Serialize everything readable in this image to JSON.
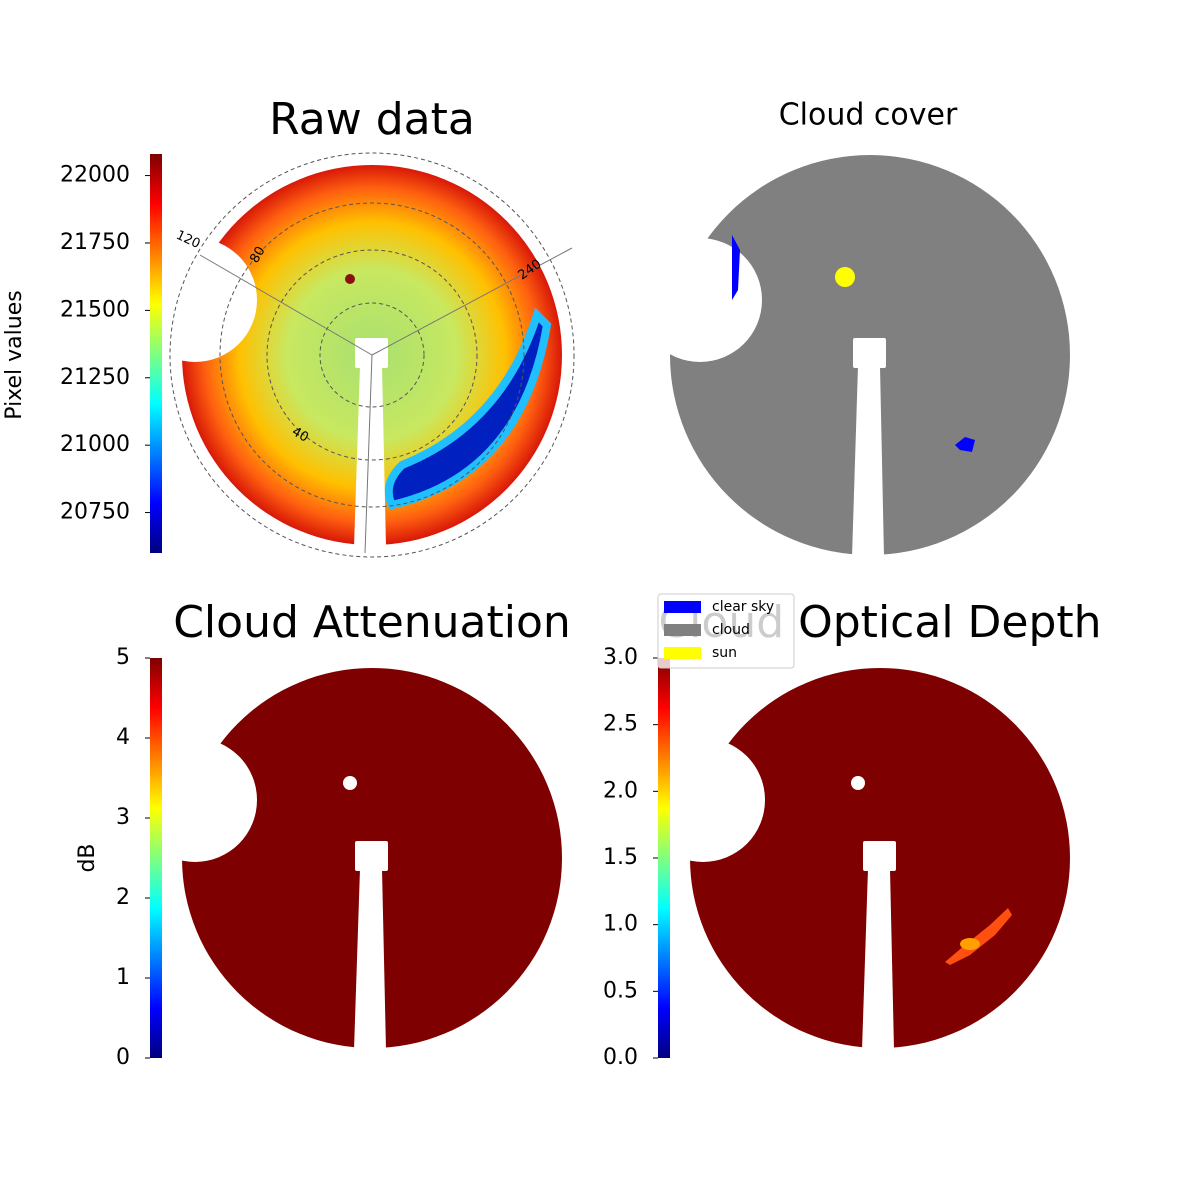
{
  "chart_data": [
    {
      "type": "image",
      "title": "Raw data",
      "colormap": "jet",
      "colorbar_label": "Pixel values",
      "ylim": [
        20600,
        22080
      ],
      "yticks": [
        20750,
        21000,
        21250,
        21500,
        21750,
        22000
      ],
      "polar_labels": [
        "120",
        "80",
        "240",
        "40"
      ]
    },
    {
      "type": "image",
      "title": "Cloud cover",
      "series": [
        {
          "name": "clear sky",
          "color": "#0000ff"
        },
        {
          "name": "cloud",
          "color": "#808080"
        },
        {
          "name": "sun",
          "color": "#ffff00"
        }
      ]
    },
    {
      "type": "image",
      "title": "Cloud Attenuation",
      "colormap": "jet",
      "colorbar_label": "dB",
      "ylim": [
        0,
        5
      ],
      "yticks": [
        0,
        1,
        2,
        3,
        4,
        5
      ]
    },
    {
      "type": "image",
      "title": "Cloud Optical Depth",
      "colormap": "jet",
      "ylim": [
        0,
        3
      ],
      "yticks": [
        {
          "value": 0,
          "label": "0.0"
        },
        0.5,
        {
          "value": 1,
          "label": "1.0"
        },
        1.5,
        {
          "value": 2,
          "label": "2.0"
        },
        2.5,
        {
          "value": 3,
          "label": "3.0"
        }
      ]
    }
  ]
}
